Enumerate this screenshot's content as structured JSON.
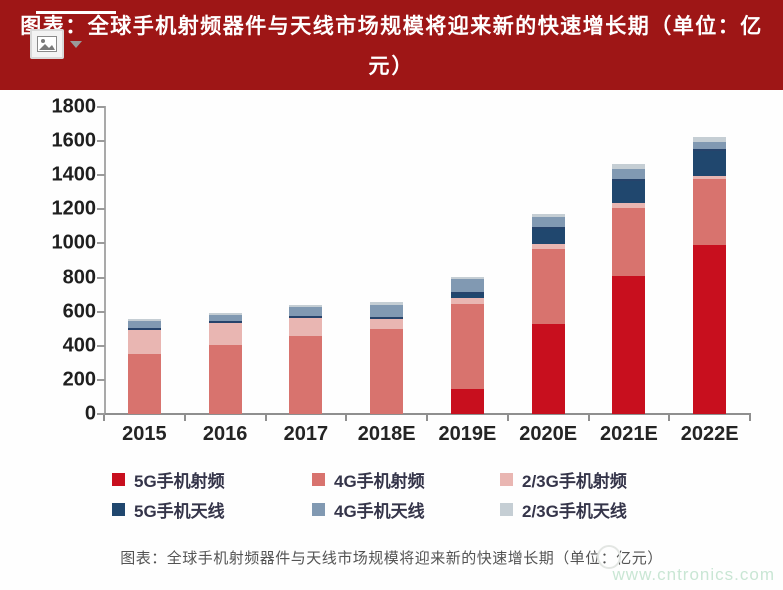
{
  "banner": {
    "title_line1": "图表：全球手机射频器件与天线市场规模将迎来新的快速增长期（单位：亿",
    "title_line2": "元）",
    "bg_color": "#9e1616"
  },
  "chart_data": {
    "type": "bar",
    "stacked": true,
    "unit": "亿元",
    "title": "全球手机射频器件与天线市场规模将迎来新的快速增长期",
    "categories": [
      "2015",
      "2016",
      "2017",
      "2018E",
      "2019E",
      "2020E",
      "2021E",
      "2022E"
    ],
    "series": [
      {
        "name": "5G手机射频",
        "color": "#c80f1e",
        "values": [
          0,
          0,
          0,
          0,
          145,
          525,
          810,
          990
        ]
      },
      {
        "name": "4G手机射频",
        "color": "#d8736e",
        "values": [
          350,
          405,
          460,
          500,
          500,
          440,
          400,
          385
        ]
      },
      {
        "name": "2/3G手机射频",
        "color": "#e9b6b2",
        "values": [
          145,
          130,
          105,
          60,
          35,
          30,
          27,
          20
        ]
      },
      {
        "name": "5G手机天线",
        "color": "#20476e",
        "values": [
          0,
          0,
          0,
          0,
          25,
          90,
          127,
          147
        ]
      },
      {
        "name": "4G手机天线",
        "color": "#8199b2",
        "values": [
          50,
          45,
          60,
          80,
          85,
          70,
          75,
          55
        ]
      },
      {
        "name": "2/3G手机天线",
        "color": "#c5ced4",
        "values": [
          15,
          10,
          15,
          15,
          15,
          18,
          25,
          25
        ]
      }
    ],
    "totals": [
      560,
      590,
      640,
      655,
      805,
      1173,
      1464,
      1622
    ],
    "ylim": [
      0,
      1800
    ],
    "ytick_step": 200,
    "yticks": [
      "0",
      "200",
      "400",
      "600",
      "800",
      "1000",
      "1200",
      "1400",
      "1600",
      "1800"
    ],
    "grid": false,
    "legend_position": "bottom",
    "legend_rows": 2,
    "legend_columns": 3
  },
  "caption": {
    "text": "图表：全球手机射频器件与天线市场规模将迎来新的快速增长期（单位：亿元）"
  },
  "watermark": {
    "text": "www.cntronics.com",
    "color": "#c9e6d4"
  }
}
